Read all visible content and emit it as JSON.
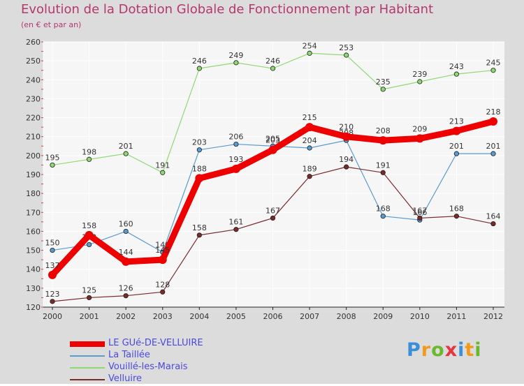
{
  "title": "Evolution de la Dotation Globale de Fonctionnement par Habitant",
  "subtitle": "(en € et par an)",
  "logo": {
    "letters": [
      "P",
      "r",
      "o",
      "x",
      "i",
      "t",
      "i"
    ],
    "colors": [
      "#3a8fd8",
      "#f29a1d",
      "#6ab82e",
      "#e8343f",
      "#3a8fd8",
      "#f29a1d",
      "#6ab82e"
    ]
  },
  "chart_data": {
    "type": "line",
    "x": [
      "2000",
      "2001",
      "2002",
      "2003",
      "2004",
      "2005",
      "2006",
      "2007",
      "2008",
      "2009",
      "2010",
      "2011",
      "2012"
    ],
    "ylim": [
      120,
      260
    ],
    "yticks": [
      120,
      130,
      140,
      150,
      160,
      170,
      180,
      190,
      200,
      210,
      220,
      230,
      240,
      250,
      260
    ],
    "grid": true,
    "legend_position": "bottom-left",
    "series": [
      {
        "name": "Vouillé-les-Marais",
        "color": "#90d874",
        "values": [
          195,
          198,
          201,
          191,
          246,
          249,
          246,
          254,
          253,
          235,
          239,
          243,
          245
        ]
      },
      {
        "name": "La Taillée",
        "color": "#5a9bd0",
        "values": [
          150,
          153,
          160,
          149,
          203,
          206,
          205,
          204,
          208,
          168,
          166,
          201,
          201
        ]
      },
      {
        "name": "Velluire",
        "color": "#7a2a2a",
        "values": [
          123,
          125,
          126,
          128,
          158,
          161,
          167,
          189,
          194,
          191,
          167,
          168,
          164
        ]
      },
      {
        "name": "LE GUé-DE-VELLUIRE",
        "color": "#ee0000",
        "values": [
          137,
          158,
          144,
          145,
          188,
          193,
          203,
          215,
          210,
          208,
          209,
          213,
          218
        ]
      }
    ]
  }
}
